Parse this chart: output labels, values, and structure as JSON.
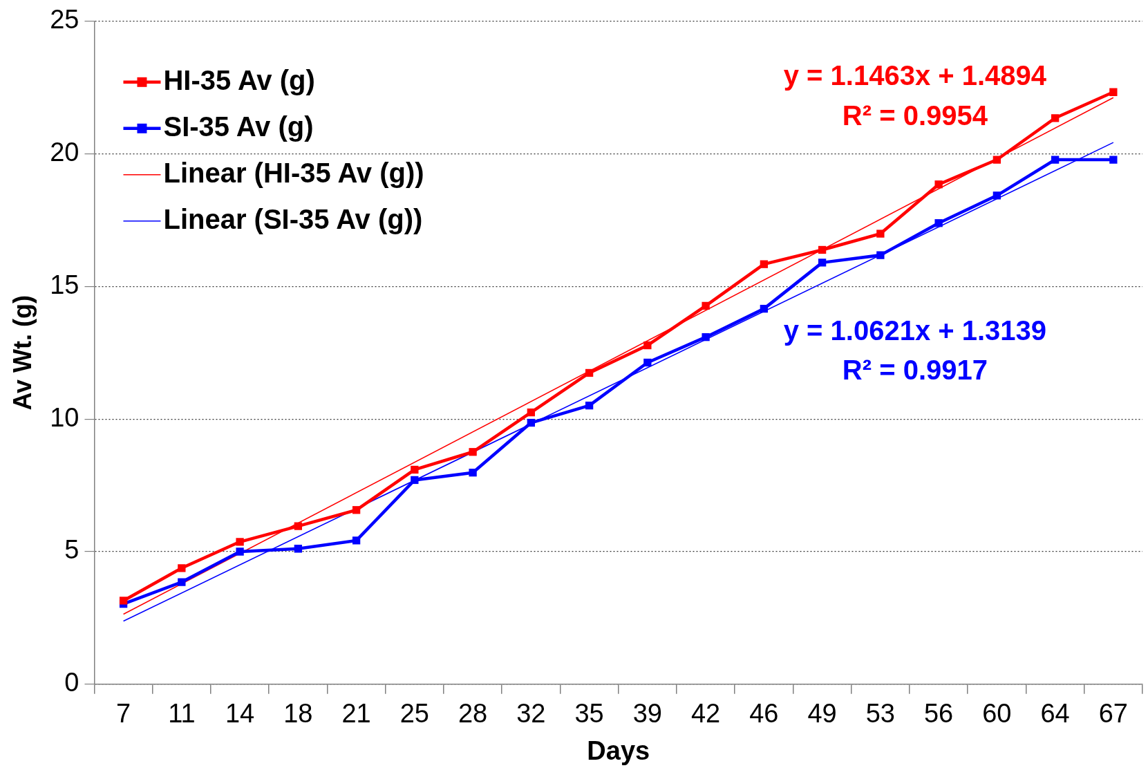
{
  "chart_data": {
    "type": "line",
    "xlabel": "Days",
    "ylabel": "Av Wt. (g)",
    "categories": [
      "7",
      "11",
      "14",
      "18",
      "21",
      "25",
      "28",
      "32",
      "35",
      "39",
      "42",
      "46",
      "49",
      "53",
      "56",
      "60",
      "64",
      "67"
    ],
    "ylim": [
      0,
      25
    ],
    "yticks": [
      0,
      5,
      10,
      15,
      20,
      25
    ],
    "grid": "y",
    "legend": "top left",
    "marker": "square",
    "line_style": "solid",
    "series": [
      {
        "name": "HI-35 Av (g)",
        "color": "#ff0000",
        "values": [
          3.15,
          4.38,
          5.37,
          5.96,
          6.57,
          8.09,
          8.76,
          10.25,
          11.74,
          12.78,
          14.27,
          15.84,
          16.38,
          16.99,
          18.85,
          19.78,
          21.35,
          22.33
        ]
      },
      {
        "name": "SI-35 Av (g)",
        "color": "#0000ff",
        "values": [
          3.03,
          3.85,
          5.0,
          5.11,
          5.42,
          7.7,
          7.98,
          9.86,
          10.51,
          12.13,
          13.09,
          14.16,
          15.9,
          16.18,
          17.39,
          18.43,
          19.78,
          19.78
        ]
      },
      {
        "name": "Linear (HI-35 Av (g))",
        "color": "#ff0000",
        "type": "line",
        "marker": "none",
        "x": [
          "7",
          "67"
        ],
        "values": [
          2.64,
          22.12
        ]
      },
      {
        "name": "Linear (SI-35 Av (g))",
        "color": "#0000ff",
        "type": "line",
        "marker": "none",
        "x": [
          "7",
          "67"
        ],
        "values": [
          2.38,
          20.43
        ]
      }
    ],
    "annotations": [
      "y = 1.1463x + 1.4894",
      "R² = 0.9954",
      "y = 1.0621x + 1.3139",
      "R² = 0.9917"
    ]
  }
}
